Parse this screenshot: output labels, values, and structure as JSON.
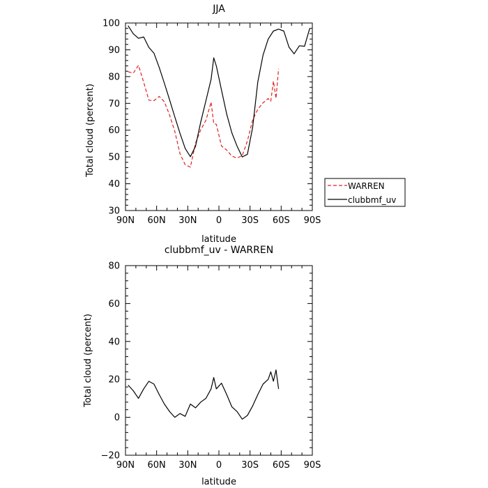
{
  "chart_data": [
    {
      "type": "line",
      "title": "JJA",
      "xlabel": "latitude",
      "ylabel": "Total cloud (percent)",
      "xlim": [
        90,
        -90
      ],
      "ylim": [
        30,
        100
      ],
      "x_ticks": [
        90,
        60,
        30,
        0,
        -30,
        -60,
        -90
      ],
      "x_tick_labels": [
        "90N",
        "60N",
        "30N",
        "0",
        "30S",
        "60S",
        "90S"
      ],
      "y_ticks": [
        30,
        40,
        50,
        60,
        70,
        80,
        90,
        100
      ],
      "y_tick_labels": [
        "30",
        "40",
        "50",
        "60",
        "70",
        "80",
        "90",
        "100"
      ],
      "legend": {
        "placement": "right",
        "entries": [
          "WARREN",
          "clubbmf_uv"
        ]
      },
      "series": [
        {
          "name": "WARREN",
          "color": "#e02020",
          "style": "dashed",
          "x": [
            87.5,
            82.5,
            77.5,
            72.5,
            67.5,
            62.5,
            57.5,
            52.5,
            47.5,
            42.5,
            37.5,
            32.5,
            27.5,
            22.5,
            17.5,
            12.5,
            7.5,
            5,
            2.5,
            -2.5,
            -7.5,
            -12.5,
            -17.5,
            -22.5,
            -27.5,
            -32.5,
            -37.5,
            -42.5,
            -47.5,
            -50,
            -52.5,
            -55,
            -57.5
          ],
          "y": [
            81.8,
            81.3,
            84.2,
            77.9,
            71.2,
            71.0,
            72.6,
            70.6,
            65.6,
            59.6,
            51.2,
            47.1,
            46.2,
            55.2,
            60.1,
            63.7,
            70.5,
            62.5,
            62.2,
            54.1,
            52.6,
            50.3,
            49.6,
            50.5,
            56.0,
            63.8,
            67.8,
            70.2,
            71.8,
            70.8,
            78.3,
            71.9,
            82.9
          ]
        },
        {
          "name": "clubbmf_uv",
          "color": "#000000",
          "style": "solid",
          "x": [
            87.5,
            82.5,
            77.5,
            72.5,
            67.5,
            62.5,
            57.5,
            52.5,
            47.5,
            42.5,
            37.5,
            32.5,
            27.5,
            22.5,
            17.5,
            12.5,
            7.5,
            5,
            2.5,
            -2.5,
            -7.5,
            -12.5,
            -17.5,
            -22.5,
            -27.5,
            -32.5,
            -37.5,
            -42.5,
            -47.5,
            -52.5,
            -57.5,
            -62.5,
            -67.5,
            -72.5,
            -77.5,
            -82.5,
            -87.5
          ],
          "y": [
            99.0,
            96.0,
            94.3,
            94.8,
            90.9,
            88.7,
            83.4,
            77.5,
            71.3,
            65.0,
            58.8,
            53.2,
            50.1,
            54.0,
            63.0,
            71.0,
            79.0,
            87.0,
            84.0,
            75.0,
            66.0,
            59.0,
            54.0,
            50.0,
            51.0,
            61.0,
            78.0,
            88.0,
            94.0,
            97.0,
            97.7,
            97.0,
            91.0,
            88.5,
            91.5,
            91.3,
            98.0
          ]
        }
      ]
    },
    {
      "type": "line",
      "title": "clubbmf_uv - WARREN",
      "xlabel": "latitude",
      "ylabel": "Total cloud (percent)",
      "xlim": [
        90,
        -90
      ],
      "ylim": [
        -20,
        80
      ],
      "x_ticks": [
        90,
        60,
        30,
        0,
        -30,
        -60,
        -90
      ],
      "x_tick_labels": [
        "90N",
        "60N",
        "30N",
        "0",
        "30S",
        "60S",
        "90S"
      ],
      "y_ticks": [
        -20,
        0,
        20,
        40,
        60,
        80
      ],
      "y_tick_labels": [
        "−20",
        "0",
        "20",
        "40",
        "60",
        "80"
      ],
      "series": [
        {
          "color": "#000000",
          "style": "solid",
          "x": [
            87.5,
            82.5,
            77.5,
            72.5,
            67.5,
            62.5,
            57.5,
            52.5,
            47.5,
            42.5,
            37.5,
            32.5,
            27.5,
            22.5,
            17.5,
            12.5,
            7.5,
            5,
            2.5,
            -2.5,
            -7.5,
            -12.5,
            -17.5,
            -22.5,
            -27.5,
            -32.5,
            -37.5,
            -42.5,
            -47.5,
            -50,
            -52.5,
            -55,
            -57.5
          ],
          "y": [
            17.0,
            14.0,
            10.0,
            15.0,
            19.0,
            17.5,
            12.0,
            7.0,
            3.0,
            0.0,
            2.0,
            0.5,
            7.0,
            5.0,
            8.0,
            10.0,
            15.0,
            21.0,
            15.0,
            18.0,
            12.0,
            5.5,
            3.0,
            -1.0,
            1.0,
            6.0,
            12.0,
            17.5,
            20.0,
            24.0,
            19.0,
            25.0,
            15.0
          ]
        }
      ]
    }
  ]
}
